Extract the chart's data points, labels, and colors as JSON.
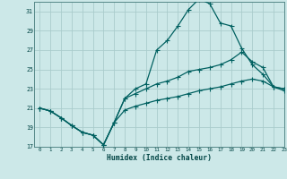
{
  "xlabel": "Humidex (Indice chaleur)",
  "background_color": "#cce8e8",
  "grid_color": "#aacccc",
  "line_color": "#006060",
  "ylim": [
    17,
    32
  ],
  "xlim": [
    -0.5,
    23
  ],
  "yticks": [
    17,
    19,
    21,
    23,
    25,
    27,
    29,
    31
  ],
  "xticks": [
    0,
    1,
    2,
    3,
    4,
    5,
    6,
    7,
    8,
    9,
    10,
    11,
    12,
    13,
    14,
    15,
    16,
    17,
    18,
    19,
    20,
    21,
    22,
    23
  ],
  "line1_x": [
    0,
    1,
    2,
    3,
    4,
    5,
    6,
    7,
    8,
    9,
    10,
    11,
    12,
    13,
    14,
    15,
    16,
    17,
    18,
    19,
    20,
    21,
    22,
    23
  ],
  "line1_y": [
    21.0,
    20.7,
    20.0,
    19.2,
    18.5,
    18.2,
    17.2,
    19.5,
    22.0,
    23.0,
    23.5,
    27.0,
    28.0,
    29.5,
    31.2,
    32.3,
    31.8,
    29.8,
    29.5,
    27.2,
    25.5,
    24.5,
    23.2,
    23.0
  ],
  "line2_x": [
    0,
    1,
    2,
    3,
    4,
    5,
    6,
    7,
    8,
    9,
    10,
    11,
    12,
    13,
    14,
    15,
    16,
    17,
    18,
    19,
    20,
    21,
    22,
    23
  ],
  "line2_y": [
    21.0,
    20.7,
    20.0,
    19.2,
    18.5,
    18.2,
    17.2,
    19.5,
    22.0,
    22.5,
    23.0,
    23.5,
    23.8,
    24.2,
    24.8,
    25.0,
    25.2,
    25.5,
    26.0,
    26.8,
    25.8,
    25.2,
    23.2,
    22.8
  ],
  "line3_x": [
    0,
    1,
    2,
    3,
    4,
    5,
    6,
    7,
    8,
    9,
    10,
    11,
    12,
    13,
    14,
    15,
    16,
    17,
    18,
    19,
    20,
    21,
    22,
    23
  ],
  "line3_y": [
    21.0,
    20.7,
    20.0,
    19.2,
    18.5,
    18.2,
    17.2,
    19.5,
    20.8,
    21.2,
    21.5,
    21.8,
    22.0,
    22.2,
    22.5,
    22.8,
    23.0,
    23.2,
    23.5,
    23.8,
    24.0,
    23.8,
    23.2,
    23.0
  ]
}
